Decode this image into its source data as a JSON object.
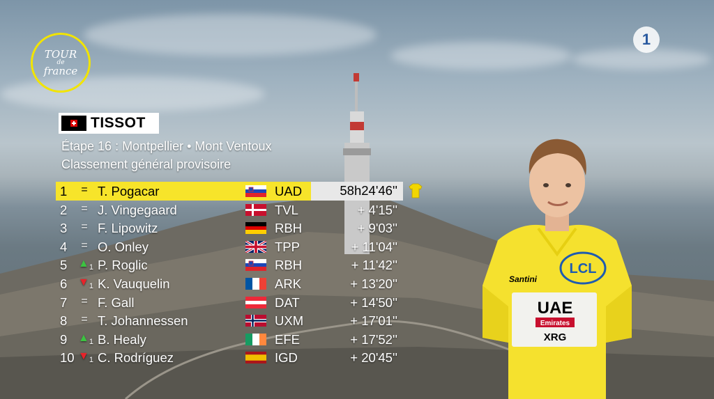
{
  "broadcast": {
    "event_logo_text": [
      "TOUR",
      "de",
      "france"
    ],
    "channel_logo_text": "1"
  },
  "sponsor": {
    "name": "TISSOT"
  },
  "header": {
    "stage": "Étape 16 : Montpellier • Mont Ventoux",
    "classification": "Classement général provisoire"
  },
  "colors": {
    "leader_yellow": "#f7e42a",
    "time_box": "#e8e8e8",
    "up_arrow": "#3cc341",
    "down_arrow": "#e8232a"
  },
  "standings": [
    {
      "pos": "1",
      "move": "=",
      "move_dir": "same",
      "move_n": "",
      "rider": "T. Pogacar",
      "flag": "slovenia",
      "team": "UAD",
      "time": "58h24'46''",
      "leader": true
    },
    {
      "pos": "2",
      "move": "=",
      "move_dir": "same",
      "move_n": "",
      "rider": "J. Vingegaard",
      "flag": "denmark",
      "team": "TVL",
      "time": "+ 4'15''"
    },
    {
      "pos": "3",
      "move": "=",
      "move_dir": "same",
      "move_n": "",
      "rider": "F. Lipowitz",
      "flag": "germany",
      "team": "RBH",
      "time": "+ 9'03''"
    },
    {
      "pos": "4",
      "move": "=",
      "move_dir": "same",
      "move_n": "",
      "rider": "O. Onley",
      "flag": "uk",
      "team": "TPP",
      "time": "+ 11'04''"
    },
    {
      "pos": "5",
      "move": "▲",
      "move_dir": "up",
      "move_n": "1",
      "rider": "P. Roglic",
      "flag": "slovenia",
      "team": "RBH",
      "time": "+ 11'42''"
    },
    {
      "pos": "6",
      "move": "▼",
      "move_dir": "down",
      "move_n": "1",
      "rider": "K. Vauquelin",
      "flag": "france",
      "team": "ARK",
      "time": "+ 13'20''"
    },
    {
      "pos": "7",
      "move": "=",
      "move_dir": "same",
      "move_n": "",
      "rider": "F. Gall",
      "flag": "austria",
      "team": "DAT",
      "time": "+ 14'50''"
    },
    {
      "pos": "8",
      "move": "=",
      "move_dir": "same",
      "move_n": "",
      "rider": "T. Johannessen",
      "flag": "norway",
      "team": "UXM",
      "time": "+ 17'01''"
    },
    {
      "pos": "9",
      "move": "▲",
      "move_dir": "up",
      "move_n": "1",
      "rider": "B. Healy",
      "flag": "ireland",
      "team": "EFE",
      "time": "+ 17'52''"
    },
    {
      "pos": "10",
      "move": "▼",
      "move_dir": "down",
      "move_n": "1",
      "rider": "C. Rodríguez",
      "flag": "spain",
      "team": "IGD",
      "time": "+ 20'45''"
    }
  ],
  "leader_jersey": {
    "icon": "yellow-jersey-icon",
    "sponsor_chest": "LCL",
    "team_name": "UAE",
    "team_sub": "Emirates",
    "team_sub2": "XRG",
    "kit_brand": "Santini"
  }
}
